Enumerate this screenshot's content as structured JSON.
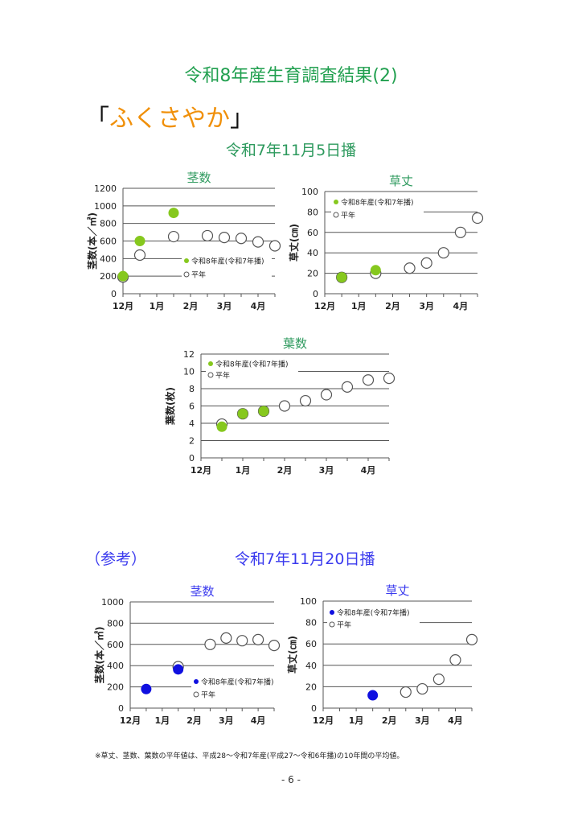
{
  "header": {
    "title": "令和8年産生育調査結果(2)",
    "variety_open": "「",
    "variety": "ふくさやか",
    "variety_close": "」",
    "sowing_main": "令和7年11月5日播",
    "reference_label": "（参考）",
    "sowing_ref": "令和7年11月20日播"
  },
  "footer": {
    "note": "※草丈、茎数、葉数の平年値は、平成28～令和7年産(平成27～令和6年播)の10年間の平均値。",
    "page_number": "- 6 -"
  },
  "colors": {
    "title_green": "#22a050",
    "chart_title_green": "#2e9a5e",
    "variety_orange": "#f0900a",
    "current_green": "#86c81e",
    "current_blue": "#1010e0",
    "ref_blue": "#3a3aee"
  },
  "chart_data": [
    {
      "type": "scatter",
      "title": "茎数",
      "ylabel": "茎数(本／㎡)",
      "ylim": [
        0,
        1200
      ],
      "yticks": [
        0,
        200,
        400,
        600,
        800,
        1000,
        1200
      ],
      "xlabels": [
        "12月",
        "1月",
        "2月",
        "3月",
        "4月"
      ],
      "xlim": [
        0,
        4.5
      ],
      "legend": [
        "令和8年産(令和7年播)",
        "平年"
      ],
      "legend_position": "center-right",
      "series": [
        {
          "name": "平年",
          "x": [
            0,
            0.5,
            1.5,
            2.5,
            3,
            3.5,
            4,
            4.5
          ],
          "y": [
            190,
            440,
            650,
            660,
            640,
            630,
            590,
            545
          ]
        },
        {
          "name": "令和8年産(令和7年播)",
          "x": [
            0,
            0.5,
            1.5
          ],
          "y": [
            200,
            600,
            920
          ]
        }
      ]
    },
    {
      "type": "scatter",
      "title": "草丈",
      "ylabel": "草丈(㎝)",
      "ylim": [
        0,
        100
      ],
      "yticks": [
        0,
        20,
        40,
        60,
        80,
        100
      ],
      "xlabels": [
        "12月",
        "1月",
        "2月",
        "3月",
        "4月"
      ],
      "xlim": [
        0,
        4.5
      ],
      "legend": [
        "令和8年産(令和7年播)",
        "平年"
      ],
      "legend_position": "top-left",
      "series": [
        {
          "name": "平年",
          "x": [
            0.5,
            1.5,
            2.5,
            3,
            3.5,
            4,
            4.5
          ],
          "y": [
            16,
            20,
            25,
            30,
            40,
            60,
            74
          ]
        },
        {
          "name": "令和8年産(令和7年播)",
          "x": [
            0.5,
            1.5
          ],
          "y": [
            16,
            23
          ]
        }
      ]
    },
    {
      "type": "scatter",
      "title": "葉数",
      "ylabel": "葉数(枚)",
      "ylim": [
        0,
        12
      ],
      "yticks": [
        0,
        2,
        4,
        6,
        8,
        10,
        12
      ],
      "xlabels": [
        "12月",
        "1月",
        "2月",
        "3月",
        "4月"
      ],
      "xlim": [
        0,
        4.5
      ],
      "legend": [
        "令和8年産(令和7年播)",
        "平年"
      ],
      "legend_position": "top-left",
      "series": [
        {
          "name": "平年",
          "x": [
            0.5,
            1,
            1.5,
            2,
            2.5,
            3,
            3.5,
            4,
            4.5
          ],
          "y": [
            3.9,
            5.1,
            5.4,
            6.0,
            6.6,
            7.3,
            8.2,
            9.0,
            9.2
          ]
        },
        {
          "name": "令和8年産(令和7年播)",
          "x": [
            0.5,
            1,
            1.5
          ],
          "y": [
            3.6,
            5.1,
            5.4
          ]
        }
      ]
    },
    {
      "type": "scatter",
      "title": "茎数",
      "ylabel": "茎数(本／㎡)",
      "ylim": [
        0,
        1000
      ],
      "yticks": [
        0,
        200,
        400,
        600,
        800,
        1000
      ],
      "xlabels": [
        "12月",
        "1月",
        "2月",
        "3月",
        "4月"
      ],
      "xlim": [
        0,
        4.5
      ],
      "legend": [
        "令和8年産(令和7年播)",
        "平年"
      ],
      "legend_position": "center-right",
      "series": [
        {
          "name": "平年",
          "x": [
            1.5,
            2.5,
            3,
            3.5,
            4,
            4.5
          ],
          "y": [
            390,
            600,
            660,
            635,
            645,
            590
          ]
        },
        {
          "name": "令和8年産(令和7年播)",
          "x": [
            0.5,
            1.5
          ],
          "y": [
            180,
            365
          ]
        }
      ]
    },
    {
      "type": "scatter",
      "title": "草丈",
      "ylabel": "草丈(㎝)",
      "ylim": [
        0,
        100
      ],
      "yticks": [
        0,
        20,
        40,
        60,
        80,
        100
      ],
      "xlabels": [
        "12月",
        "1月",
        "2月",
        "3月",
        "4月"
      ],
      "xlim": [
        0,
        4.5
      ],
      "legend": [
        "令和8年産(令和7年播)",
        "平年"
      ],
      "legend_position": "top-left",
      "series": [
        {
          "name": "平年",
          "x": [
            2.5,
            3,
            3.5,
            4,
            4.5
          ],
          "y": [
            15,
            18,
            27,
            45,
            64
          ]
        },
        {
          "name": "令和8年産(令和7年播)",
          "x": [
            1.5
          ],
          "y": [
            12
          ]
        }
      ]
    }
  ]
}
